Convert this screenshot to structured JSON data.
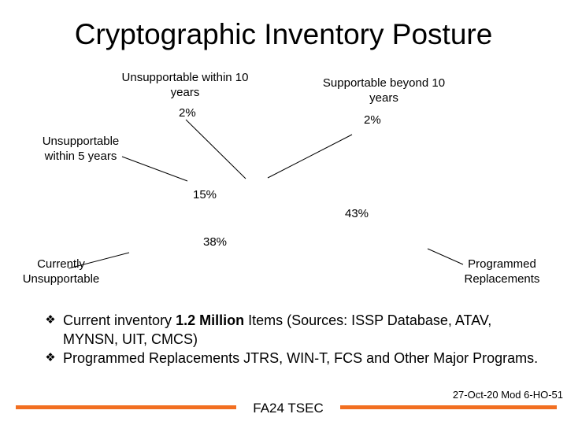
{
  "chart_data": {
    "type": "pie",
    "title": "Cryptographic Inventory Posture",
    "categories": [
      "Programmed Replacements",
      "Currently Unsupportable",
      "Unsupportable within 5 years",
      "Unsupportable within 10 years",
      "Supportable beyond 10 years"
    ],
    "values": [
      43,
      38,
      15,
      2,
      2
    ],
    "value_labels": [
      "43%",
      "38%",
      "15%",
      "2%",
      "2%"
    ],
    "legend": "none",
    "data_labels": "outside-with-leader-lines"
  },
  "slide": {
    "bullets": [
      {
        "icon": "diamond-bullet-icon",
        "before": "Current inventory ",
        "bold": "1.2 Million",
        "after": " Items (Sources: ISSP Database, ATAV, MYNSN, UIT, CMCS)"
      },
      {
        "icon": "diamond-bullet-icon",
        "before": "Programmed Replacements JTRS, WIN-T, FCS and Other Major Programs."
      }
    ],
    "footer": {
      "center": "FA24 TSEC",
      "reference": "27-Oct-20 Mod 6-HO-51",
      "accent_color": "#f26f21"
    }
  }
}
